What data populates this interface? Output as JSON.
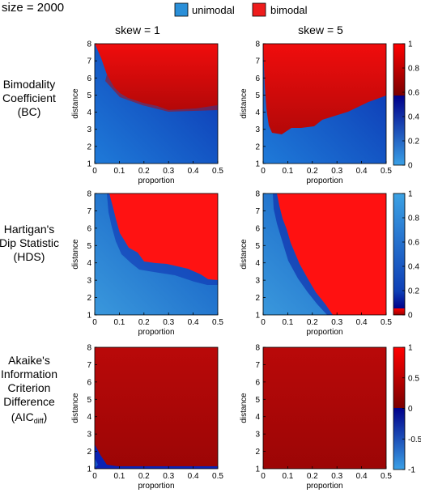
{
  "header": {
    "size_label": "size = 2000"
  },
  "legend": [
    {
      "label": "unimodal",
      "color": "#2a8fd8"
    },
    {
      "label": "bimodal",
      "color": "#ee1c1c"
    }
  ],
  "columns": [
    {
      "label": "skew = 1"
    },
    {
      "label": "skew = 5"
    }
  ],
  "rows": [
    {
      "lines": [
        "Bimodality",
        "Coefficient",
        "(BC)"
      ]
    },
    {
      "lines": [
        "Hartigan's",
        "Dip Statistic",
        "(HDS)"
      ]
    },
    {
      "lines": [
        "Akaike's",
        "Information",
        "Criterion",
        "Difference",
        "(AIC",
        "diff",
        ")"
      ]
    }
  ],
  "axes": {
    "xlabel": "proportion",
    "ylabel": "distance",
    "x_ticks": [
      "0",
      "0.1",
      "0.2",
      "0.3",
      "0.4",
      "0.5"
    ],
    "y_ticks": [
      "1",
      "2",
      "3",
      "4",
      "5",
      "6",
      "7",
      "8"
    ],
    "xlim": [
      0,
      0.5
    ],
    "ylim": [
      1,
      8
    ]
  },
  "colorbars": [
    {
      "ticks": [
        "0",
        "0.2",
        "0.4",
        "0.6",
        "0.8",
        "1"
      ],
      "range": [
        0,
        1
      ],
      "threshold": 0.555
    },
    {
      "ticks": [
        "0",
        "0.2",
        "0.4",
        "0.6",
        "0.8",
        "1"
      ],
      "range": [
        0,
        1
      ],
      "threshold": 0.05
    },
    {
      "ticks": [
        "-1",
        "-0.5",
        "0",
        "0.5",
        "1"
      ],
      "range": [
        -1,
        1
      ],
      "threshold": 0
    }
  ],
  "chart_data": {
    "type": "heatmap",
    "title": "size = 2000",
    "xlabel": "proportion",
    "ylabel": "distance",
    "x_range": [
      0,
      0.5
    ],
    "y_range": [
      1,
      8
    ],
    "series_names": [
      "unimodal",
      "bimodal"
    ],
    "panels": [
      {
        "row": "Bimodality Coefficient (BC)",
        "column": "skew = 1",
        "bimodal_region_boundary": [
          [
            0.0,
            8
          ],
          [
            0.005,
            7.5
          ],
          [
            0.02,
            6.8
          ],
          [
            0.04,
            6.1
          ],
          [
            0.06,
            5.5
          ],
          [
            0.1,
            4.9
          ],
          [
            0.15,
            4.6
          ],
          [
            0.22,
            4.1
          ],
          [
            0.3,
            4.1
          ],
          [
            0.4,
            4.1
          ],
          [
            0.5,
            4.2
          ]
        ]
      },
      {
        "row": "Bimodality Coefficient (BC)",
        "column": "skew = 5",
        "bimodal_region_boundary": [
          [
            0.0,
            8
          ],
          [
            0.005,
            7.2
          ],
          [
            0.01,
            6.2
          ],
          [
            0.02,
            5
          ],
          [
            0.03,
            3.8
          ],
          [
            0.06,
            3.1
          ],
          [
            0.1,
            2.9
          ],
          [
            0.12,
            2.7
          ],
          [
            0.18,
            3.1
          ],
          [
            0.22,
            3
          ],
          [
            0.3,
            3.4
          ],
          [
            0.4,
            4
          ],
          [
            0.5,
            5
          ]
        ]
      },
      {
        "row": "Hartigan's Dip Statistic (HDS)",
        "column": "skew = 1",
        "bimodal_region_boundary": [
          [
            0.06,
            8
          ],
          [
            0.1,
            7
          ],
          [
            0.13,
            5.5
          ],
          [
            0.17,
            5
          ],
          [
            0.23,
            4
          ],
          [
            0.3,
            3.8
          ],
          [
            0.38,
            3.6
          ],
          [
            0.43,
            3.1
          ],
          [
            0.46,
            2.9
          ],
          [
            0.5,
            2.85
          ]
        ]
      },
      {
        "row": "Hartigan's Dip Statistic (HDS)",
        "column": "skew = 5",
        "bimodal_region_boundary": [
          [
            0.06,
            8
          ],
          [
            0.08,
            6
          ],
          [
            0.1,
            5
          ],
          [
            0.12,
            4.1
          ],
          [
            0.15,
            3.2
          ],
          [
            0.2,
            2.2
          ],
          [
            0.25,
            1.6
          ],
          [
            0.3,
            1
          ]
        ]
      },
      {
        "row": "Akaike's Information Criterion Difference (AICdiff)",
        "column": "skew = 1",
        "bimodal_region_boundary": [
          [
            0,
            2.6
          ],
          [
            0.02,
            1.6
          ],
          [
            0.05,
            1.1
          ],
          [
            0.5,
            1.05
          ]
        ]
      },
      {
        "row": "Akaike's Information Criterion Difference (AICdiff)",
        "column": "skew = 5",
        "bimodal_region_boundary": [
          [
            0,
            1
          ],
          [
            0.5,
            1
          ]
        ]
      }
    ]
  }
}
